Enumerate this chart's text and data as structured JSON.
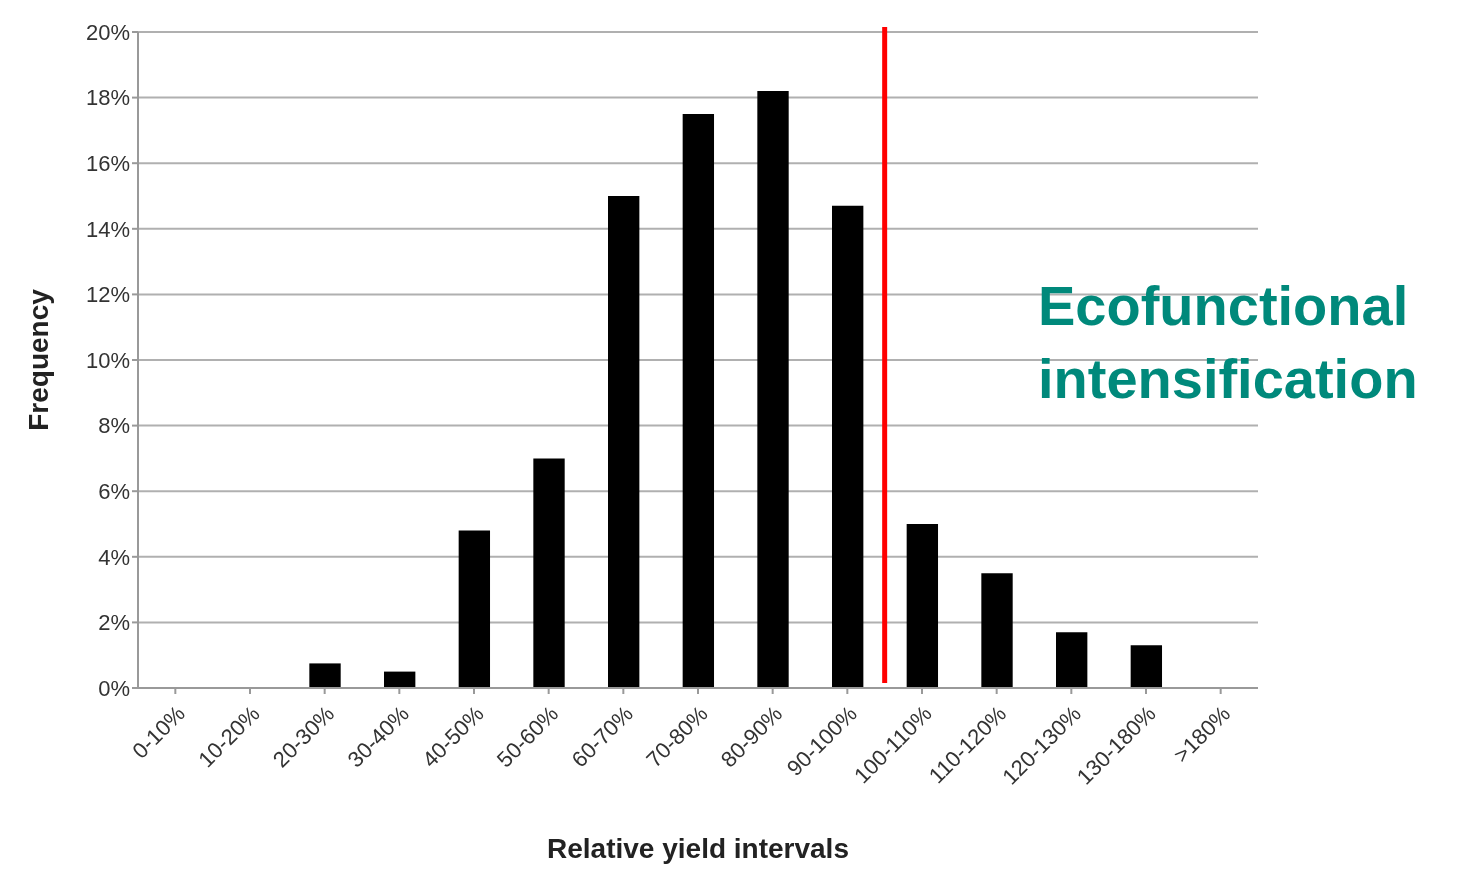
{
  "chart_data": {
    "type": "bar",
    "xlabel": "Relative yield intervals",
    "ylabel": "Frequency",
    "categories": [
      "0-10%",
      "10-20%",
      "20-30%",
      "30-40%",
      "40-50%",
      "50-60%",
      "60-70%",
      "70-80%",
      "80-90%",
      "90-100%",
      "100-110%",
      "110-120%",
      "120-130%",
      "130-180%",
      ">180%"
    ],
    "values": [
      0,
      0,
      0.75,
      0.5,
      4.8,
      7.0,
      15.0,
      17.5,
      18.2,
      14.7,
      5.0,
      3.5,
      1.7,
      1.3,
      0
    ],
    "color": "#000000",
    "ylim": [
      0,
      20
    ],
    "yticks": [
      {
        "value": 0,
        "label": "0%"
      },
      {
        "value": 2,
        "label": "2%"
      },
      {
        "value": 4,
        "label": "4%"
      },
      {
        "value": 6,
        "label": "6%"
      },
      {
        "value": 8,
        "label": "8%"
      },
      {
        "value": 10,
        "label": "10%"
      },
      {
        "value": 12,
        "label": "12%"
      },
      {
        "value": 14,
        "label": "14%"
      },
      {
        "value": 16,
        "label": "16%"
      },
      {
        "value": 18,
        "label": "18%"
      },
      {
        "value": 20,
        "label": "20%"
      }
    ],
    "grid": "y",
    "ref_lines": [
      {
        "axis": "x",
        "value": "100-110%",
        "color": "#ff0000"
      }
    ],
    "annotations": [
      "Ecofunctional intensification"
    ]
  }
}
